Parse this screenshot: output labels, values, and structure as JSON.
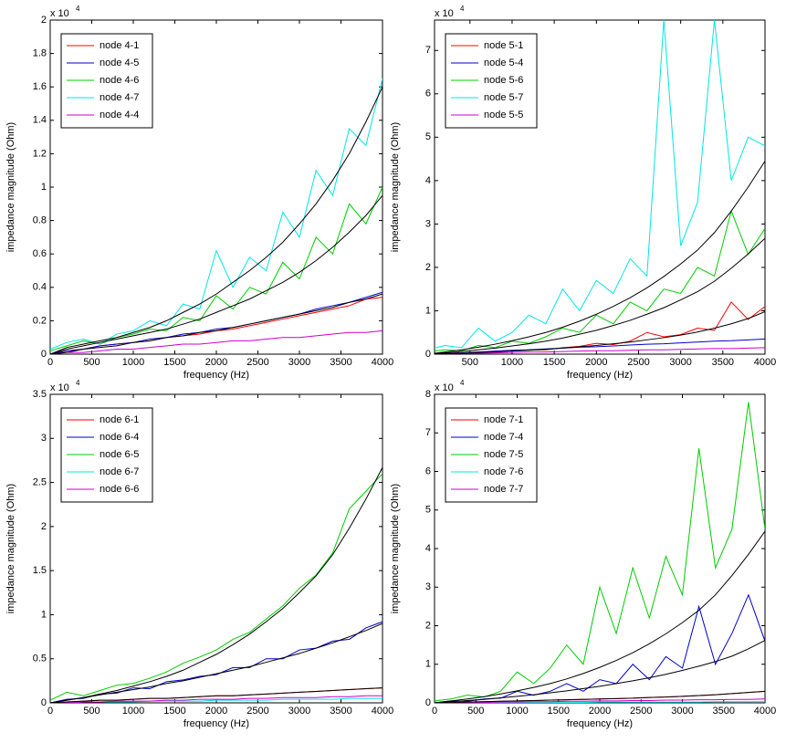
{
  "chart_data": [
    {
      "type": "line",
      "xlabel": "frequency (Hz)",
      "ylabel": "impedance magnitude (Ohm)",
      "y_multiplier": "x 10",
      "y_exponent": 4,
      "xlim": [
        0,
        4000
      ],
      "xticks": [
        0,
        500,
        1000,
        1500,
        2000,
        2500,
        3000,
        3500,
        4000
      ],
      "ylim": [
        0,
        2
      ],
      "yticks": [
        0,
        0.2,
        0.4,
        0.6,
        0.8,
        1,
        1.2,
        1.4,
        1.6,
        1.8,
        2
      ],
      "legend": "upper left",
      "x": [
        0,
        200,
        400,
        600,
        800,
        1000,
        1200,
        1400,
        1600,
        1800,
        2000,
        2200,
        2400,
        2600,
        2800,
        3000,
        3200,
        3400,
        3600,
        3800,
        4000
      ],
      "series": [
        {
          "name": "node 4-1",
          "color": "#ff0000",
          "values": [
            0,
            0.02,
            0.03,
            0.05,
            0.06,
            0.07,
            0.08,
            0.1,
            0.11,
            0.12,
            0.14,
            0.15,
            0.17,
            0.19,
            0.21,
            0.23,
            0.25,
            0.27,
            0.29,
            0.33,
            0.34
          ]
        },
        {
          "name": "node 4-5",
          "color": "#0000cc",
          "values": [
            0,
            0.02,
            0.03,
            0.05,
            0.06,
            0.07,
            0.09,
            0.1,
            0.12,
            0.13,
            0.15,
            0.16,
            0.18,
            0.2,
            0.22,
            0.24,
            0.27,
            0.29,
            0.31,
            0.34,
            0.37
          ]
        },
        {
          "name": "node 4-6",
          "color": "#00cc00",
          "values": [
            0.02,
            0.05,
            0.08,
            0.06,
            0.1,
            0.12,
            0.15,
            0.14,
            0.22,
            0.2,
            0.35,
            0.27,
            0.4,
            0.36,
            0.55,
            0.45,
            0.7,
            0.6,
            0.9,
            0.78,
            1.0
          ]
        },
        {
          "name": "node 4-7",
          "color": "#00e5e5",
          "values": [
            0.03,
            0.07,
            0.09,
            0.06,
            0.12,
            0.14,
            0.2,
            0.17,
            0.3,
            0.27,
            0.62,
            0.4,
            0.58,
            0.5,
            0.85,
            0.7,
            1.1,
            0.95,
            1.35,
            1.25,
            1.65
          ]
        },
        {
          "name": "node 4-4",
          "color": "#cc00cc",
          "values": [
            0,
            0.01,
            0.01,
            0.02,
            0.03,
            0.03,
            0.04,
            0.05,
            0.06,
            0.06,
            0.07,
            0.08,
            0.08,
            0.09,
            0.1,
            0.1,
            0.11,
            0.12,
            0.13,
            0.13,
            0.14
          ]
        },
        {
          "color": "#000000",
          "values": [
            0,
            0.01,
            0.03,
            0.04,
            0.05,
            0.07,
            0.08,
            0.1,
            0.11,
            0.13,
            0.14,
            0.16,
            0.18,
            0.2,
            0.22,
            0.24,
            0.26,
            0.28,
            0.31,
            0.33,
            0.36
          ]
        },
        {
          "color": "#000000",
          "values": [
            0,
            0.03,
            0.05,
            0.07,
            0.09,
            0.11,
            0.13,
            0.15,
            0.18,
            0.21,
            0.25,
            0.29,
            0.33,
            0.38,
            0.43,
            0.49,
            0.56,
            0.64,
            0.73,
            0.83,
            0.95
          ]
        },
        {
          "color": "#000000",
          "values": [
            0,
            0.04,
            0.06,
            0.08,
            0.1,
            0.13,
            0.16,
            0.2,
            0.25,
            0.3,
            0.36,
            0.43,
            0.5,
            0.58,
            0.67,
            0.78,
            0.9,
            1.04,
            1.2,
            1.39,
            1.6
          ]
        }
      ]
    },
    {
      "type": "line",
      "xlabel": "frequency (Hz)",
      "ylabel": "impedance magnitude (Ohm)",
      "y_multiplier": "x 10",
      "y_exponent": 4,
      "xlim": [
        80,
        4000
      ],
      "xticks": [
        500,
        1000,
        1500,
        2000,
        2500,
        3000,
        3500,
        4000
      ],
      "ylim": [
        0,
        7.7
      ],
      "yticks": [
        0,
        1,
        2,
        3,
        4,
        5,
        6,
        7
      ],
      "legend": "upper left",
      "x": [
        0,
        200,
        400,
        600,
        800,
        1000,
        1200,
        1400,
        1600,
        1800,
        2000,
        2200,
        2400,
        2600,
        2800,
        3000,
        3200,
        3400,
        3600,
        3800,
        4000
      ],
      "series": [
        {
          "name": "node 5-1",
          "color": "#ff0000",
          "values": [
            0,
            0.02,
            0.03,
            0.05,
            0.06,
            0.08,
            0.1,
            0.1,
            0.15,
            0.18,
            0.25,
            0.22,
            0.3,
            0.5,
            0.4,
            0.45,
            0.6,
            0.55,
            1.2,
            0.8,
            1.1
          ]
        },
        {
          "name": "node 5-4",
          "color": "#0000cc",
          "values": [
            0,
            0.02,
            0.03,
            0.05,
            0.07,
            0.09,
            0.1,
            0.12,
            0.14,
            0.16,
            0.17,
            0.19,
            0.21,
            0.23,
            0.24,
            0.26,
            0.28,
            0.3,
            0.31,
            0.33,
            0.35
          ]
        },
        {
          "name": "node 5-6",
          "color": "#00cc00",
          "values": [
            0.05,
            0.1,
            0.08,
            0.2,
            0.15,
            0.3,
            0.25,
            0.4,
            0.6,
            0.5,
            0.9,
            0.7,
            1.2,
            1.0,
            1.5,
            1.4,
            2.0,
            1.8,
            3.3,
            2.3,
            2.9
          ]
        },
        {
          "name": "node 5-7",
          "color": "#00e5e5",
          "values": [
            0.1,
            0.2,
            0.15,
            0.6,
            0.3,
            0.5,
            0.9,
            0.7,
            1.5,
            1.0,
            1.7,
            1.4,
            2.2,
            1.8,
            7.7,
            2.5,
            3.5,
            7.7,
            4.0,
            5.0,
            4.8
          ]
        },
        {
          "name": "node 5-5",
          "color": "#cc00cc",
          "values": [
            0,
            0.01,
            0.02,
            0.02,
            0.03,
            0.04,
            0.05,
            0.05,
            0.06,
            0.07,
            0.08,
            0.08,
            0.09,
            0.1,
            0.1,
            0.11,
            0.12,
            0.13,
            0.13,
            0.14,
            0.15
          ]
        },
        {
          "color": "#000000",
          "values": [
            0,
            0.01,
            0.02,
            0.04,
            0.05,
            0.07,
            0.09,
            0.11,
            0.14,
            0.17,
            0.2,
            0.24,
            0.28,
            0.33,
            0.38,
            0.44,
            0.51,
            0.6,
            0.7,
            0.82,
            0.98
          ]
        },
        {
          "color": "#000000",
          "values": [
            0,
            0.03,
            0.06,
            0.1,
            0.14,
            0.19,
            0.24,
            0.3,
            0.37,
            0.46,
            0.55,
            0.66,
            0.78,
            0.92,
            1.07,
            1.25,
            1.44,
            1.68,
            1.98,
            2.31,
            2.67
          ]
        },
        {
          "color": "#000000",
          "values": [
            0,
            0.05,
            0.1,
            0.16,
            0.23,
            0.31,
            0.4,
            0.5,
            0.62,
            0.76,
            0.92,
            1.1,
            1.3,
            1.53,
            1.79,
            2.08,
            2.4,
            2.8,
            3.3,
            3.85,
            4.45
          ]
        }
      ]
    },
    {
      "type": "line",
      "xlabel": "frequency (Hz)",
      "ylabel": "impedance magnitude (Ohm)",
      "y_multiplier": "x 10",
      "y_exponent": 4,
      "xlim": [
        0,
        4000
      ],
      "xticks": [
        0,
        500,
        1000,
        1500,
        2000,
        2500,
        3000,
        3500,
        4000
      ],
      "ylim": [
        0,
        3.5
      ],
      "yticks": [
        0,
        0.5,
        1,
        1.5,
        2,
        2.5,
        3,
        3.5
      ],
      "legend": "upper left",
      "x": [
        0,
        200,
        400,
        600,
        800,
        1000,
        1200,
        1400,
        1600,
        1800,
        2000,
        2200,
        2400,
        2600,
        2800,
        3000,
        3200,
        3400,
        3600,
        3800,
        4000
      ],
      "series": [
        {
          "name": "node 6-1",
          "color": "#ff0000",
          "values": [
            0,
            0.01,
            0.02,
            0.03,
            0.03,
            0.04,
            0.05,
            0.05,
            0.06,
            0.07,
            0.08,
            0.08,
            0.09,
            0.1,
            0.11,
            0.12,
            0.13,
            0.14,
            0.15,
            0.16,
            0.17
          ]
        },
        {
          "name": "node 6-4",
          "color": "#0000cc",
          "values": [
            0,
            0.04,
            0.05,
            0.1,
            0.11,
            0.17,
            0.16,
            0.24,
            0.26,
            0.3,
            0.32,
            0.4,
            0.4,
            0.5,
            0.5,
            0.6,
            0.62,
            0.7,
            0.72,
            0.85,
            0.92
          ]
        },
        {
          "name": "node 6-5",
          "color": "#00cc00",
          "values": [
            0.03,
            0.12,
            0.08,
            0.14,
            0.2,
            0.22,
            0.28,
            0.35,
            0.45,
            0.52,
            0.6,
            0.72,
            0.8,
            0.95,
            1.1,
            1.3,
            1.45,
            1.7,
            2.2,
            2.4,
            2.6
          ]
        },
        {
          "name": "node 6-7",
          "color": "#00e5e5",
          "values": [
            0,
            0,
            0.01,
            0.01,
            0.01,
            0.01,
            0.02,
            0.02,
            0.02,
            0.02,
            0.03,
            0.03,
            0.03,
            0.03,
            0.04,
            0.04,
            0.04,
            0.04,
            0.05,
            0.05,
            0.05
          ]
        },
        {
          "name": "node 6-6",
          "color": "#cc00cc",
          "values": [
            0,
            0,
            0.01,
            0.01,
            0.02,
            0.02,
            0.02,
            0.03,
            0.03,
            0.04,
            0.04,
            0.04,
            0.05,
            0.05,
            0.06,
            0.06,
            0.06,
            0.07,
            0.07,
            0.08,
            0.08
          ]
        },
        {
          "color": "#000000",
          "values": [
            0,
            0.01,
            0.02,
            0.03,
            0.03,
            0.04,
            0.05,
            0.05,
            0.06,
            0.07,
            0.08,
            0.08,
            0.09,
            0.1,
            0.11,
            0.12,
            0.13,
            0.14,
            0.15,
            0.16,
            0.17
          ]
        },
        {
          "color": "#000000",
          "values": [
            0,
            0.03,
            0.06,
            0.09,
            0.12,
            0.15,
            0.18,
            0.22,
            0.25,
            0.29,
            0.33,
            0.37,
            0.41,
            0.46,
            0.51,
            0.56,
            0.62,
            0.68,
            0.75,
            0.82,
            0.9
          ]
        },
        {
          "color": "#000000",
          "values": [
            0,
            0.03,
            0.06,
            0.1,
            0.14,
            0.19,
            0.24,
            0.3,
            0.37,
            0.46,
            0.55,
            0.66,
            0.78,
            0.92,
            1.07,
            1.25,
            1.44,
            1.68,
            1.98,
            2.31,
            2.67
          ]
        }
      ]
    },
    {
      "type": "line",
      "xlabel": "frequency (Hz)",
      "ylabel": "impedance magnitude (Ohm)",
      "y_multiplier": "x 10",
      "y_exponent": 4,
      "xlim": [
        0,
        4000
      ],
      "xticks": [
        0,
        500,
        1000,
        1500,
        2000,
        2500,
        3000,
        3500,
        4000
      ],
      "ylim": [
        0,
        8
      ],
      "yticks": [
        0,
        1,
        2,
        3,
        4,
        5,
        6,
        7,
        8
      ],
      "legend": "upper left",
      "x": [
        0,
        200,
        400,
        600,
        800,
        1000,
        1200,
        1400,
        1600,
        1800,
        2000,
        2200,
        2400,
        2600,
        2800,
        3000,
        3200,
        3400,
        3600,
        3800,
        4000
      ],
      "series": [
        {
          "name": "node 7-1",
          "color": "#ff0000",
          "values": [
            0,
            0.01,
            0.02,
            0.03,
            0.04,
            0.05,
            0.06,
            0.07,
            0.08,
            0.09,
            0.1,
            0.11,
            0.12,
            0.14,
            0.15,
            0.17,
            0.19,
            0.21,
            0.24,
            0.27,
            0.3
          ]
        },
        {
          "name": "node 7-4",
          "color": "#0000cc",
          "values": [
            0,
            0.05,
            0.04,
            0.1,
            0.12,
            0.3,
            0.2,
            0.3,
            0.5,
            0.3,
            0.6,
            0.5,
            1.0,
            0.6,
            1.2,
            0.9,
            2.5,
            1.0,
            1.8,
            2.8,
            1.6
          ]
        },
        {
          "name": "node 7-5",
          "color": "#00cc00",
          "values": [
            0.05,
            0.1,
            0.2,
            0.15,
            0.3,
            0.8,
            0.5,
            0.9,
            1.5,
            1.0,
            3.0,
            1.8,
            3.5,
            2.2,
            3.8,
            2.8,
            6.6,
            3.5,
            4.5,
            7.8,
            4.5
          ]
        },
        {
          "name": "node 7-6",
          "color": "#00e5e5",
          "values": [
            0,
            0,
            0,
            0.01,
            0.01,
            0.01,
            0.01,
            0.01,
            0.01,
            0.01,
            0.02,
            0.02,
            0.02,
            0.02,
            0.02,
            0.02,
            0.02,
            0.03,
            0.03,
            0.03,
            0.03
          ]
        },
        {
          "name": "node 7-7",
          "color": "#cc00cc",
          "values": [
            0,
            0,
            0.01,
            0.01,
            0.02,
            0.02,
            0.03,
            0.03,
            0.04,
            0.04,
            0.05,
            0.05,
            0.06,
            0.06,
            0.07,
            0.07,
            0.08,
            0.08,
            0.09,
            0.09,
            0.1
          ]
        },
        {
          "color": "#000000",
          "values": [
            0,
            0.01,
            0.02,
            0.03,
            0.04,
            0.05,
            0.06,
            0.07,
            0.08,
            0.09,
            0.1,
            0.11,
            0.12,
            0.14,
            0.15,
            0.17,
            0.19,
            0.21,
            0.24,
            0.27,
            0.3
          ]
        },
        {
          "color": "#000000",
          "values": [
            0,
            0.03,
            0.06,
            0.09,
            0.13,
            0.17,
            0.21,
            0.26,
            0.31,
            0.37,
            0.43,
            0.5,
            0.57,
            0.65,
            0.74,
            0.84,
            0.95,
            1.07,
            1.21,
            1.4,
            1.62
          ]
        },
        {
          "color": "#000000",
          "values": [
            0,
            0.05,
            0.1,
            0.16,
            0.23,
            0.31,
            0.4,
            0.5,
            0.62,
            0.76,
            0.92,
            1.1,
            1.3,
            1.53,
            1.79,
            2.08,
            2.4,
            2.8,
            3.3,
            3.85,
            4.45
          ]
        }
      ]
    }
  ]
}
